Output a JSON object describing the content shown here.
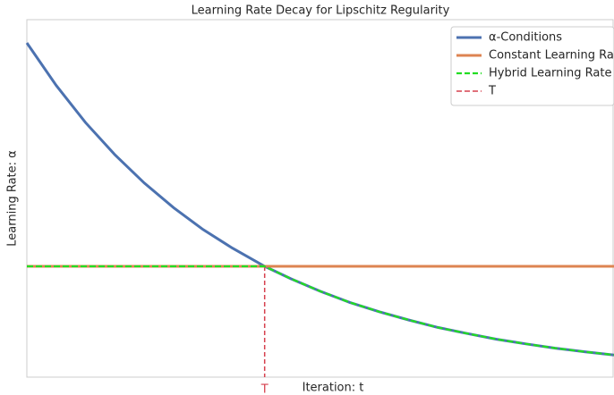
{
  "chart_data": {
    "type": "line",
    "title": "Learning Rate Decay for Lipschitz Regularity",
    "xlabel": "Iteration: t",
    "ylabel": "Learning Rate: α",
    "x": [
      0,
      0.05,
      0.1,
      0.15,
      0.2,
      0.25,
      0.3,
      0.35,
      0.405,
      0.45,
      0.5,
      0.55,
      0.6,
      0.65,
      0.7,
      0.75,
      0.8,
      0.85,
      0.9,
      0.95,
      1
    ],
    "series": [
      {
        "name": "α-Conditions",
        "color": "#4c72b0",
        "dash": false,
        "values": [
          0.935,
          0.816,
          0.712,
          0.622,
          0.543,
          0.474,
          0.413,
          0.361,
          0.31,
          0.275,
          0.24,
          0.209,
          0.183,
          0.16,
          0.139,
          0.122,
          0.106,
          0.093,
          0.081,
          0.071,
          0.062
        ]
      },
      {
        "name": "Constant Learning Rate",
        "color": "#dd8452",
        "dash": false,
        "values": [
          0.31,
          0.31,
          0.31,
          0.31,
          0.31,
          0.31,
          0.31,
          0.31,
          0.31,
          0.31,
          0.31,
          0.31,
          0.31,
          0.31,
          0.31,
          0.31,
          0.31,
          0.31,
          0.31,
          0.31,
          0.31
        ]
      },
      {
        "name": "Hybrid Learning Rate",
        "color": "#22dd22",
        "dash": true,
        "values": [
          0.31,
          0.31,
          0.31,
          0.31,
          0.31,
          0.31,
          0.31,
          0.31,
          0.31,
          0.275,
          0.24,
          0.209,
          0.183,
          0.16,
          0.139,
          0.122,
          0.106,
          0.093,
          0.081,
          0.071,
          0.062
        ]
      }
    ],
    "vline": {
      "name": "T",
      "x": 0.405,
      "color": "#d6404e",
      "label": "T"
    },
    "xlim": [
      0,
      1
    ],
    "ylim": [
      0,
      1
    ],
    "legend": "upper right"
  }
}
